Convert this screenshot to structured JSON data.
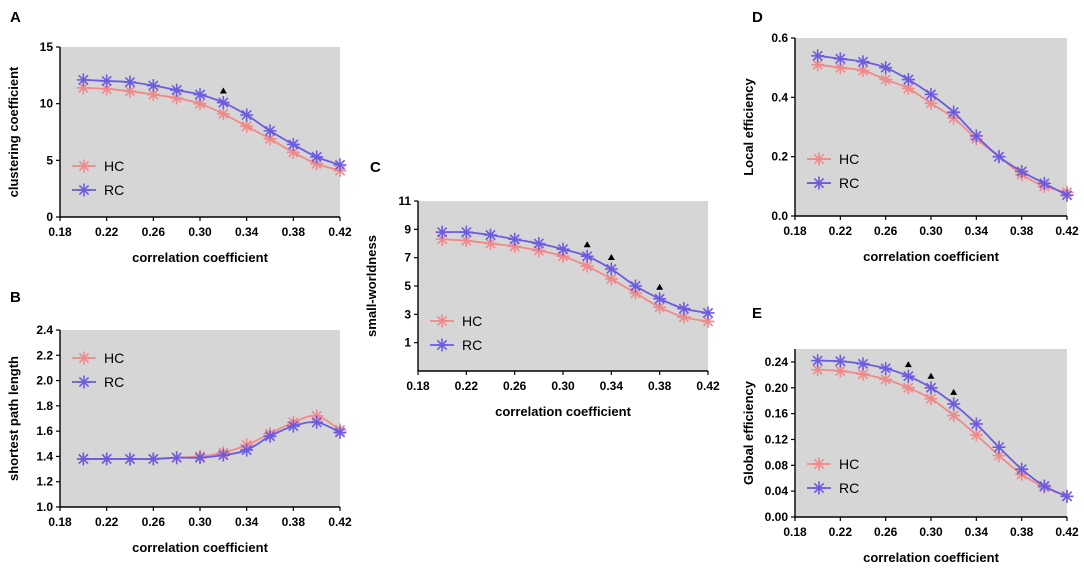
{
  "chart_data": [
    {
      "panel": "A",
      "type": "line",
      "ylabel": "clustering coefficient",
      "xlabel": "correlation coefficient",
      "xlim": [
        0.18,
        0.42
      ],
      "xticks": [
        "0.18",
        "0.22",
        "0.26",
        "0.30",
        "0.34",
        "0.38",
        "0.42"
      ],
      "ylim": [
        0,
        15
      ],
      "yticks": [
        "0",
        "5",
        "10",
        "15"
      ],
      "x": [
        0.2,
        0.22,
        0.24,
        0.26,
        0.28,
        0.3,
        0.32,
        0.34,
        0.36,
        0.38,
        0.4,
        0.42
      ],
      "series": [
        {
          "name": "HC",
          "color": "#f08a8a",
          "values": [
            11.4,
            11.3,
            11.1,
            10.8,
            10.5,
            10.0,
            9.1,
            8.0,
            6.9,
            5.7,
            4.7,
            4.1
          ]
        },
        {
          "name": "RC",
          "color": "#6b5ce0",
          "values": [
            12.1,
            12.0,
            11.9,
            11.6,
            11.2,
            10.8,
            10.1,
            9.0,
            7.6,
            6.4,
            5.3,
            4.6
          ]
        }
      ],
      "markers": [
        0.32
      ],
      "legend": "lower-left"
    },
    {
      "panel": "B",
      "type": "line",
      "ylabel": "shortest path length",
      "xlabel": "correlation coefficient",
      "xlim": [
        0.18,
        0.42
      ],
      "xticks": [
        "0.18",
        "0.22",
        "0.26",
        "0.30",
        "0.34",
        "0.38",
        "0.42"
      ],
      "ylim": [
        1.0,
        2.4
      ],
      "yticks": [
        "1.0",
        "1.2",
        "1.4",
        "1.6",
        "1.8",
        "2.0",
        "2.2",
        "2.4"
      ],
      "x": [
        0.2,
        0.22,
        0.24,
        0.26,
        0.28,
        0.3,
        0.32,
        0.34,
        0.36,
        0.38,
        0.4,
        0.42
      ],
      "series": [
        {
          "name": "HC",
          "color": "#f08a8a",
          "values": [
            1.38,
            1.38,
            1.38,
            1.38,
            1.39,
            1.4,
            1.43,
            1.49,
            1.58,
            1.67,
            1.72,
            1.61
          ]
        },
        {
          "name": "RC",
          "color": "#6b5ce0",
          "values": [
            1.38,
            1.38,
            1.38,
            1.38,
            1.39,
            1.39,
            1.41,
            1.45,
            1.56,
            1.64,
            1.67,
            1.59
          ]
        }
      ],
      "markers": [],
      "legend": "upper-left"
    },
    {
      "panel": "C",
      "type": "line",
      "ylabel": "small-worldness",
      "xlabel": "correlation coefficient",
      "xlim": [
        0.18,
        0.42
      ],
      "xticks": [
        "0.18",
        "0.22",
        "0.26",
        "0.30",
        "0.34",
        "0.38",
        "0.42"
      ],
      "ylim": [
        -1,
        11
      ],
      "yticks": [
        "1",
        "3",
        "5",
        "7",
        "9",
        "11"
      ],
      "x": [
        0.2,
        0.22,
        0.24,
        0.26,
        0.28,
        0.3,
        0.32,
        0.34,
        0.36,
        0.38,
        0.4,
        0.42
      ],
      "series": [
        {
          "name": "HC",
          "color": "#f08a8a",
          "values": [
            8.3,
            8.2,
            8.0,
            7.8,
            7.5,
            7.1,
            6.4,
            5.5,
            4.5,
            3.5,
            2.8,
            2.5
          ]
        },
        {
          "name": "RC",
          "color": "#6b5ce0",
          "values": [
            8.8,
            8.8,
            8.6,
            8.3,
            8.0,
            7.6,
            7.1,
            6.2,
            5.0,
            4.1,
            3.4,
            3.1
          ]
        }
      ],
      "markers": [
        0.32,
        0.34,
        0.38
      ],
      "legend": "lower-left"
    },
    {
      "panel": "D",
      "type": "line",
      "ylabel": "Local efficiency",
      "xlabel": "correlation coefficient",
      "xlim": [
        0.18,
        0.42
      ],
      "xticks": [
        "0.18",
        "0.22",
        "0.26",
        "0.30",
        "0.34",
        "0.38",
        "0.42"
      ],
      "ylim": [
        0.0,
        0.6
      ],
      "yticks": [
        "0.0",
        "0.2",
        "0.4",
        "0.6"
      ],
      "x": [
        0.2,
        0.22,
        0.24,
        0.26,
        0.28,
        0.3,
        0.32,
        0.34,
        0.36,
        0.38,
        0.4,
        0.42
      ],
      "series": [
        {
          "name": "HC",
          "color": "#f08a8a",
          "values": [
            0.51,
            0.5,
            0.49,
            0.46,
            0.43,
            0.38,
            0.33,
            0.26,
            0.2,
            0.14,
            0.1,
            0.08
          ]
        },
        {
          "name": "RC",
          "color": "#6b5ce0",
          "values": [
            0.54,
            0.53,
            0.52,
            0.5,
            0.46,
            0.41,
            0.35,
            0.27,
            0.2,
            0.15,
            0.11,
            0.07
          ]
        }
      ],
      "markers": [],
      "legend": "mid-left"
    },
    {
      "panel": "E",
      "type": "line",
      "ylabel": "Global efficiency",
      "xlabel": "correlation coefficient",
      "xlim": [
        0.18,
        0.42
      ],
      "xticks": [
        "0.18",
        "0.22",
        "0.26",
        "0.30",
        "0.34",
        "0.38",
        "0.42"
      ],
      "ylim": [
        0.0,
        0.26
      ],
      "yticks": [
        "0.00",
        "0.04",
        "0.08",
        "0.12",
        "0.16",
        "0.20",
        "0.24"
      ],
      "x": [
        0.2,
        0.22,
        0.24,
        0.26,
        0.28,
        0.3,
        0.32,
        0.34,
        0.36,
        0.38,
        0.4,
        0.42
      ],
      "series": [
        {
          "name": "HC",
          "color": "#f08a8a",
          "values": [
            0.228,
            0.226,
            0.221,
            0.213,
            0.2,
            0.183,
            0.157,
            0.127,
            0.095,
            0.066,
            0.046,
            0.032
          ]
        },
        {
          "name": "RC",
          "color": "#6b5ce0",
          "values": [
            0.242,
            0.241,
            0.237,
            0.23,
            0.218,
            0.2,
            0.175,
            0.144,
            0.108,
            0.074,
            0.048,
            0.032
          ]
        }
      ],
      "markers": [
        0.28,
        0.3,
        0.32
      ],
      "legend": "lower-left"
    }
  ]
}
